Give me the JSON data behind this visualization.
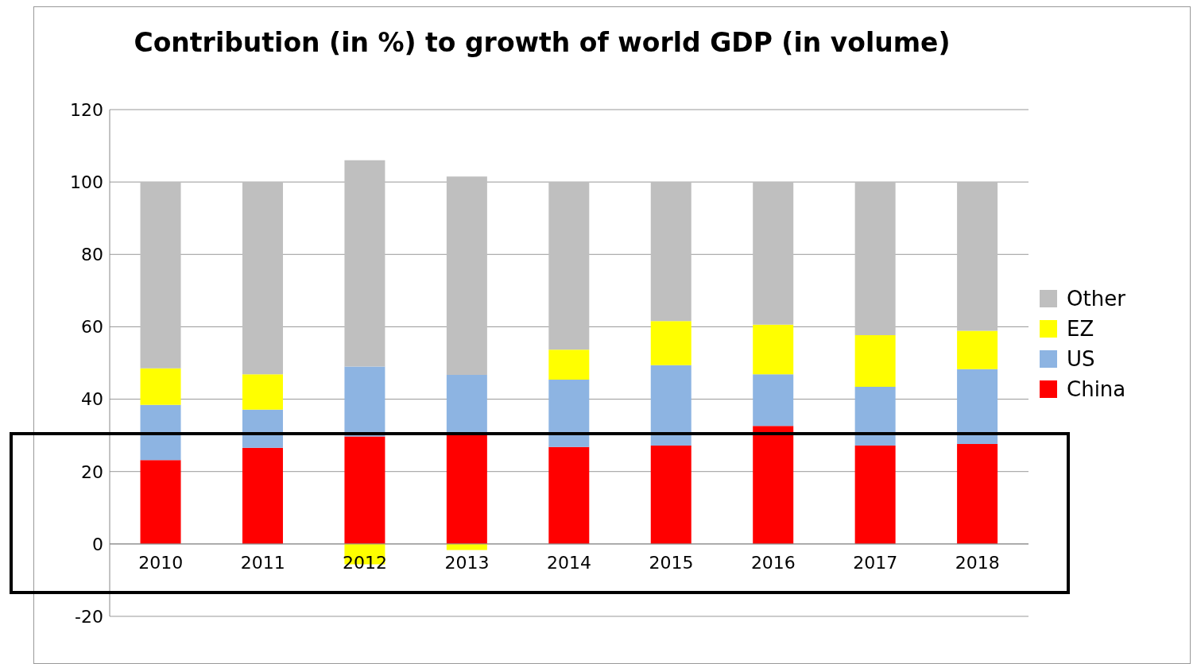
{
  "chart_data": {
    "type": "bar",
    "title": "Contribution (in %) to growth of world GDP (in volume)",
    "categories": [
      "2010",
      "2011",
      "2012",
      "2013",
      "2014",
      "2015",
      "2016",
      "2017",
      "2018"
    ],
    "stacked": true,
    "series": [
      {
        "name": "China",
        "color": "#ff0000",
        "values": [
          23.2,
          26.6,
          29.7,
          30.3,
          26.8,
          27.2,
          32.6,
          27.2,
          27.6
        ]
      },
      {
        "name": "US",
        "color": "#8db4e2",
        "values": [
          15.2,
          10.5,
          19.3,
          16.4,
          18.6,
          22.2,
          14.3,
          16.2,
          20.7
        ]
      },
      {
        "name": "EZ",
        "color": "#ffff00",
        "values": [
          10.1,
          9.8,
          -5.6,
          -1.7,
          8.3,
          12.2,
          13.7,
          14.3,
          10.6
        ]
      },
      {
        "name": "Other",
        "color": "#bfbfbf",
        "values": [
          51.5,
          53.1,
          57.0,
          54.8,
          46.3,
          38.4,
          39.4,
          42.3,
          41.1
        ]
      }
    ],
    "ylim": [
      -20,
      120
    ],
    "yticks": [
      -20,
      0,
      20,
      40,
      60,
      80,
      100,
      120
    ],
    "grid": "y",
    "legend": "right"
  }
}
